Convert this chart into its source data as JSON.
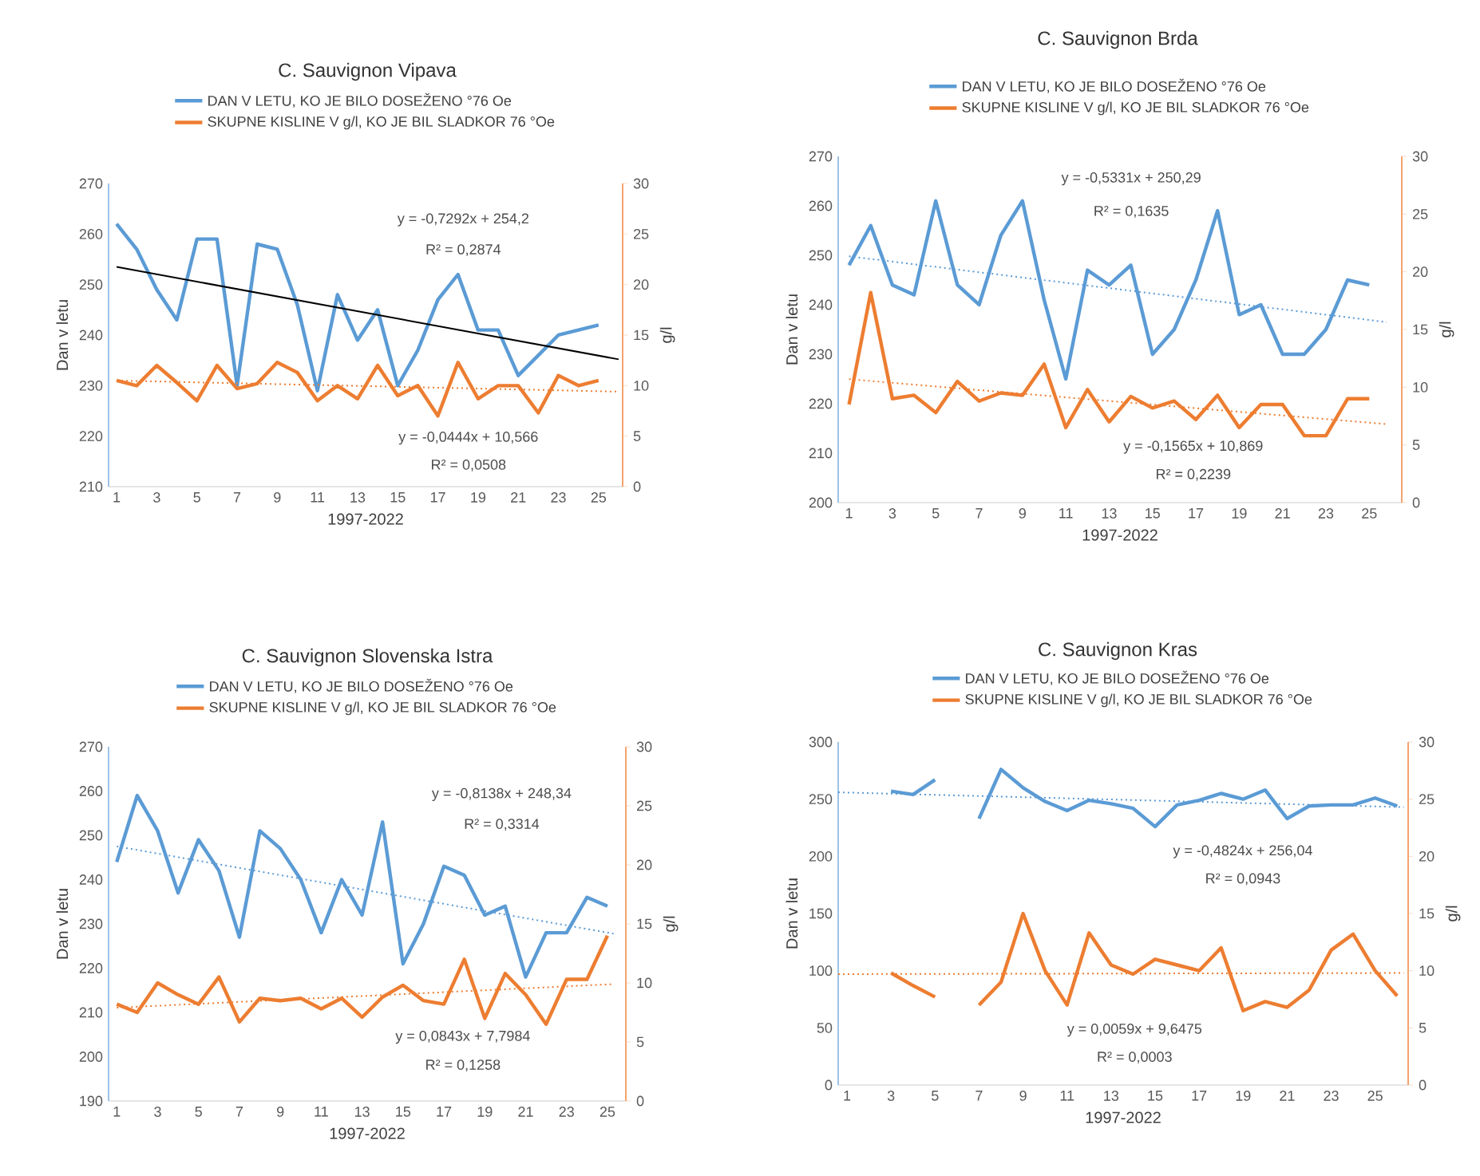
{
  "chart_data": [
    {
      "type": "line",
      "title": "C. Sauvignon Vipava",
      "xlabel": "1997-2022",
      "ylabel": "Dan v letu",
      "y2label": "g/l",
      "legend": "top",
      "x": [
        1,
        2,
        3,
        4,
        5,
        6,
        7,
        8,
        9,
        10,
        11,
        12,
        13,
        14,
        15,
        16,
        17,
        18,
        19,
        20,
        21,
        22,
        23,
        24,
        25
      ],
      "xlim": [
        0.6,
        26.2
      ],
      "xticks": [
        1,
        3,
        5,
        7,
        9,
        11,
        13,
        15,
        17,
        19,
        21,
        23,
        25
      ],
      "ylim": [
        210,
        270
      ],
      "yticks": [
        210,
        220,
        230,
        240,
        250,
        260,
        270
      ],
      "y2lim": [
        0,
        30
      ],
      "y2ticks": [
        0,
        5,
        10,
        15,
        20,
        25,
        30
      ],
      "series": [
        {
          "name": "DAN V LETU, KO JE BILO DOSEŽENO °76 Oe",
          "color": "#5b9bd5",
          "values": [
            262,
            257,
            249,
            243,
            259,
            259,
            230,
            258,
            257,
            246,
            229,
            248,
            239,
            245,
            230,
            237,
            247,
            252,
            241,
            241,
            232,
            236,
            240,
            241,
            242
          ]
        },
        {
          "name": "SKUPNE KISLINE V g/l, KO JE BIL SLADKOR 76 °Oe",
          "color": "#ed7d31",
          "axis": "y2",
          "values": [
            10.5,
            10,
            12,
            10.3,
            8.5,
            12,
            9.7,
            10.2,
            12.3,
            11.3,
            8.5,
            10,
            8.7,
            12,
            9,
            10,
            7,
            12.3,
            8.7,
            10,
            10,
            7.3,
            11,
            10,
            10.5
          ]
        },
        {
          "type": "line",
          "x": [
            1,
            26
          ],
          "values": [
            253.5,
            235.2
          ],
          "color": "#000000",
          "line_style": "solid"
        },
        {
          "type": "line",
          "x": [
            1,
            26
          ],
          "values": [
            10.5,
            9.4
          ],
          "color": "#ed7d31",
          "axis": "y2",
          "line_style": "dotted"
        }
      ],
      "annotations": [
        "y = -0,7292x + 254,2",
        "R² = 0,2874",
        "y = -0,0444x + 10,566",
        "R² = 0,0508"
      ]
    },
    {
      "type": "line",
      "title": "C. Sauvignon Brda",
      "xlabel": "1997-2022",
      "ylabel": "Dan v letu",
      "y2label": "g/l",
      "legend": "top",
      "x": [
        1,
        2,
        3,
        4,
        5,
        6,
        7,
        8,
        9,
        10,
        11,
        12,
        13,
        14,
        15,
        16,
        17,
        18,
        19,
        20,
        21,
        22,
        23,
        24,
        25
      ],
      "xlim": [
        0.5,
        26.5
      ],
      "xticks": [
        1,
        3,
        5,
        7,
        9,
        11,
        13,
        15,
        17,
        19,
        21,
        23,
        25
      ],
      "ylim": [
        200,
        270
      ],
      "yticks": [
        200,
        210,
        220,
        230,
        240,
        250,
        260,
        270
      ],
      "y2lim": [
        0,
        30
      ],
      "y2ticks": [
        0,
        5,
        10,
        15,
        20,
        25,
        30
      ],
      "series": [
        {
          "name": "DAN V LETU, KO JE BILO DOSEŽENO °76 Oe",
          "color": "#5b9bd5",
          "values": [
            248,
            256,
            244,
            242,
            261,
            244,
            240,
            254,
            261,
            241,
            225,
            247,
            244,
            248,
            230,
            235,
            245,
            259,
            238,
            240,
            230,
            230,
            235,
            245,
            244
          ]
        },
        {
          "name": "SKUPNE KISLINE V g/l, KO JE BIL SLADKOR 76 °Oe",
          "color": "#ed7d31",
          "axis": "y2",
          "values": [
            8.5,
            18.2,
            9,
            9.3,
            7.8,
            10.5,
            8.8,
            9.5,
            9.3,
            12,
            6.5,
            9.8,
            7,
            9.2,
            8.2,
            8.8,
            7.2,
            9.3,
            6.5,
            8.5,
            8.5,
            5.8,
            5.8,
            9,
            9
          ]
        },
        {
          "type": "line",
          "x": [
            1,
            25.8
          ],
          "values": [
            249.8,
            236.5
          ],
          "color": "#5b9bd5",
          "line_style": "dotted"
        },
        {
          "type": "line",
          "x": [
            1,
            25.8
          ],
          "values": [
            10.7,
            6.8
          ],
          "color": "#ed7d31",
          "axis": "y2",
          "line_style": "dotted"
        }
      ],
      "annotations": [
        "y = -0,5331x + 250,29",
        "R² = 0,1635",
        "y = -0,1565x + 10,869",
        "R² = 0,2239"
      ]
    },
    {
      "type": "line",
      "title": "C. Sauvignon Slovenska Istra",
      "xlabel": "1997-2022",
      "ylabel": "Dan v letu",
      "y2label": "g/l",
      "legend": "top",
      "x": [
        1,
        2,
        3,
        4,
        5,
        6,
        7,
        8,
        9,
        10,
        11,
        12,
        13,
        14,
        15,
        16,
        17,
        18,
        19,
        20,
        21,
        22,
        23,
        24,
        25
      ],
      "xlim": [
        0.6,
        25.9
      ],
      "xticks": [
        1,
        3,
        5,
        7,
        9,
        11,
        13,
        15,
        17,
        19,
        21,
        23,
        25
      ],
      "ylim": [
        190,
        270
      ],
      "yticks": [
        190,
        200,
        210,
        220,
        230,
        240,
        250,
        260,
        270
      ],
      "y2lim": [
        0,
        30
      ],
      "y2ticks": [
        0,
        5,
        10,
        15,
        20,
        25,
        30
      ],
      "series": [
        {
          "name": "DAN V LETU, KO JE BILO DOSEŽENO °76 Oe",
          "color": "#5b9bd5",
          "values": [
            244,
            259,
            251,
            237,
            249,
            242,
            227,
            251,
            247,
            240,
            228,
            240,
            232,
            253,
            221,
            230,
            243,
            241,
            232,
            234,
            218,
            228,
            228,
            236,
            234
          ]
        },
        {
          "name": "SKUPNE KISLINE V g/l, KO JE BIL SLADKOR 76 °Oe",
          "color": "#ed7d31",
          "axis": "y2",
          "values": [
            8.2,
            7.5,
            10,
            9,
            8.2,
            10.5,
            6.7,
            8.7,
            8.5,
            8.7,
            7.8,
            8.7,
            7.1,
            8.8,
            9.8,
            8.5,
            8.2,
            12,
            7,
            10.8,
            9,
            6.5,
            10.3,
            10.3,
            14
          ]
        },
        {
          "type": "line",
          "x": [
            1,
            25.3
          ],
          "values": [
            247.5,
            227.8
          ],
          "color": "#5b9bd5",
          "line_style": "dotted"
        },
        {
          "type": "line",
          "x": [
            1,
            25.3
          ],
          "values": [
            7.9,
            9.9
          ],
          "color": "#ed7d31",
          "axis": "y2",
          "line_style": "dotted"
        }
      ],
      "annotations": [
        "y = -0,8138x + 248,34",
        "R² = 0,3314",
        "y = 0,0843x + 7,7984",
        "R² = 0,1258"
      ]
    },
    {
      "type": "line",
      "title": "C. Sauvignon Kras",
      "xlabel": "1997-2022",
      "ylabel": "Dan v letu",
      "y2label": "g/l",
      "legend": "top",
      "x": [
        3,
        4,
        5,
        6,
        7,
        8,
        9,
        10,
        11,
        12,
        13,
        14,
        15,
        16,
        17,
        18,
        19,
        20,
        21,
        22,
        23,
        24,
        25,
        26
      ],
      "xlim": [
        0.6,
        26.5
      ],
      "xticks": [
        1,
        3,
        5,
        7,
        9,
        11,
        13,
        15,
        17,
        19,
        21,
        23,
        25
      ],
      "ylim": [
        0,
        300
      ],
      "yticks": [
        0,
        50,
        100,
        150,
        200,
        250,
        300
      ],
      "y2lim": [
        0,
        30
      ],
      "y2ticks": [
        0,
        5,
        10,
        15,
        20,
        25,
        30
      ],
      "series": [
        {
          "name": "DAN V LETU, KO JE BILO DOSEŽENO °76 Oe",
          "color": "#5b9bd5",
          "values": [
            257,
            254,
            267,
            null,
            233,
            276,
            260,
            248,
            240,
            249,
            246,
            242,
            226,
            245,
            249,
            255,
            250,
            258,
            233,
            244,
            245,
            245,
            251,
            244
          ]
        },
        {
          "name": "SKUPNE KISLINE V g/l, KO JE BIL SLADKOR 76 °Oe",
          "color": "#ed7d31",
          "axis": "y2",
          "values": [
            9.8,
            8.7,
            7.7,
            null,
            7,
            9,
            15,
            10,
            7,
            13.3,
            10.5,
            9.7,
            11,
            10.5,
            10,
            12,
            6.5,
            7.3,
            6.8,
            8.3,
            11.8,
            13.2,
            10,
            7.8
          ]
        },
        {
          "type": "line",
          "x": [
            0.6,
            26.3
          ],
          "values": [
            256,
            243
          ],
          "color": "#5b9bd5",
          "line_style": "dotted"
        },
        {
          "type": "line",
          "x": [
            0.6,
            26.3
          ],
          "values": [
            9.7,
            9.8
          ],
          "color": "#ed7d31",
          "axis": "y2",
          "line_style": "dotted"
        }
      ],
      "annotations": [
        "y = -0,4824x + 256,04",
        "R² = 0,0943",
        "y = 0,0059x + 9,6475",
        "R² = 0,0003"
      ]
    }
  ]
}
